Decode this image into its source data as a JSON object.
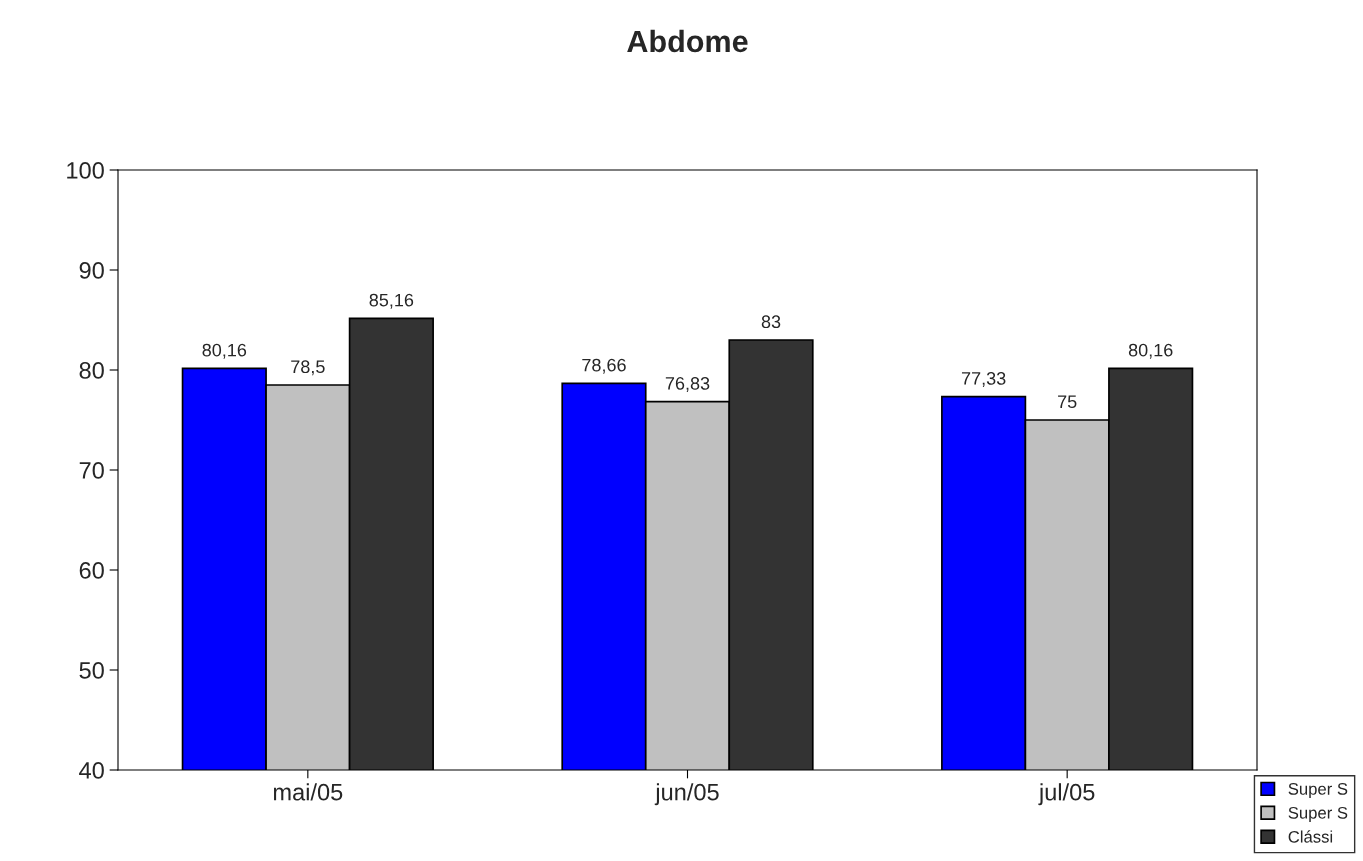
{
  "chart_data": {
    "type": "bar",
    "title": "Abdome",
    "categories": [
      "mai/05",
      "jun/05",
      "jul/05"
    ],
    "series": [
      {
        "name": "Super S",
        "color": "#0000ff",
        "values": [
          80.16,
          78.66,
          77.33
        ],
        "value_labels": [
          "80,16",
          "78,66",
          "77,33"
        ]
      },
      {
        "name": "Super S",
        "color": "#c0c0c0",
        "values": [
          78.5,
          76.83,
          75
        ],
        "value_labels": [
          "78,5",
          "76,83",
          "75"
        ]
      },
      {
        "name": "Clássi",
        "color": "#333333",
        "values": [
          85.16,
          83,
          80.16
        ],
        "value_labels": [
          "85,16",
          "83",
          "80,16"
        ]
      }
    ],
    "ylim": [
      40,
      100
    ],
    "yticks": [
      40,
      50,
      60,
      70,
      80,
      90,
      100
    ],
    "grid": false,
    "legend": "bottom right"
  }
}
